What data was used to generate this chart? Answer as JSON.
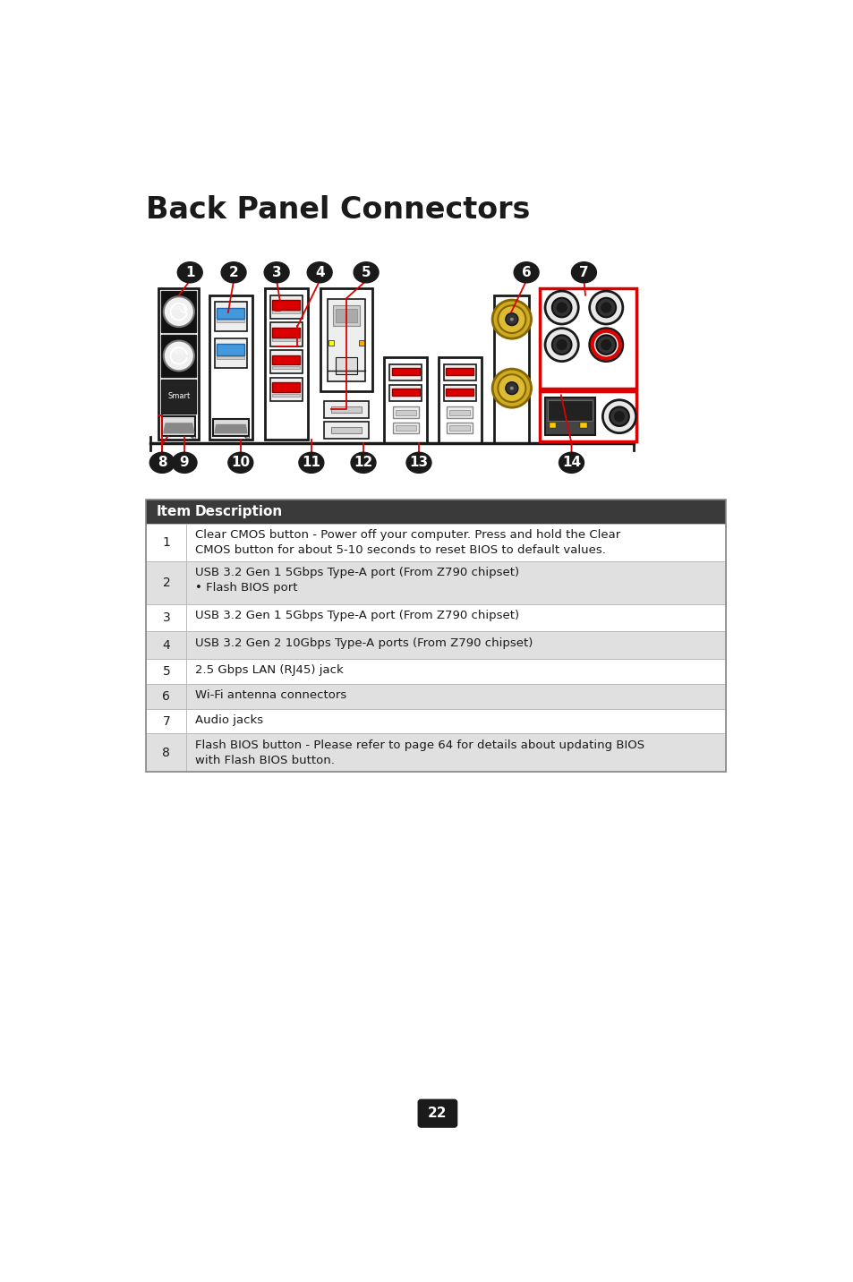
{
  "title": "Back Panel Connectors",
  "page_number": "22",
  "bg_color": "#ffffff",
  "table_header": [
    "Item",
    "Description"
  ],
  "table_header_bg": "#3a3a3a",
  "table_header_color": "#ffffff",
  "table_rows": [
    {
      "item": "1",
      "desc": "Clear CMOS button - Power off your computer. Press and hold the Clear\nCMOS button for about 5-10 seconds to reset BIOS to default values.",
      "bg": "#ffffff"
    },
    {
      "item": "2",
      "desc": "USB 3.2 Gen 1 5Gbps Type-A port (From Z790 chipset)\n• Flash BIOS port",
      "bg": "#e0e0e0"
    },
    {
      "item": "3",
      "desc": "USB 3.2 Gen 1 5Gbps Type-A port (From Z790 chipset)",
      "bg": "#ffffff"
    },
    {
      "item": "4",
      "desc": "USB 3.2 Gen 2 10Gbps Type-A ports (From Z790 chipset)",
      "bg": "#e0e0e0"
    },
    {
      "item": "5",
      "desc": "2.5 Gbps LAN (RJ45) jack",
      "bg": "#ffffff"
    },
    {
      "item": "6",
      "desc": "Wi-Fi antenna connectors",
      "bg": "#e0e0e0"
    },
    {
      "item": "7",
      "desc": "Audio jacks",
      "bg": "#ffffff"
    },
    {
      "item": "8",
      "desc": "Flash BIOS button - Please refer to page 64 for details about updating BIOS\nwith Flash BIOS button.",
      "bg": "#e0e0e0"
    }
  ],
  "badge_color": "#1a1a1a",
  "badge_text_color": "#ffffff",
  "red_color": "#dd0000",
  "blue_color": "#4499dd",
  "gold_color": "#ccaa00",
  "outline_color": "#1a1a1a",
  "line_color": "#dd0000"
}
